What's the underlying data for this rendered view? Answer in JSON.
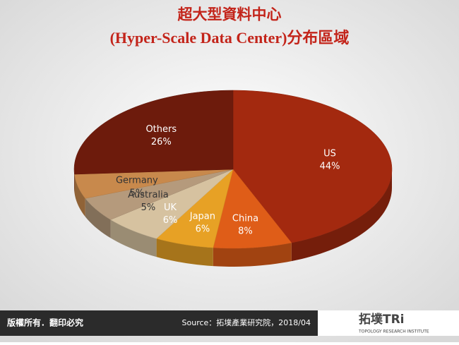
{
  "chart_data": {
    "type": "pie",
    "title": "超大型資料中心",
    "subtitle": "(Hyper-Scale Data Center)分布區域",
    "categories": [
      "US",
      "China",
      "Japan",
      "UK",
      "Australia",
      "Germany",
      "Others"
    ],
    "values": [
      44,
      8,
      6,
      6,
      5,
      5,
      26
    ],
    "value_labels": [
      "44%",
      "8%",
      "6%",
      "6%",
      "5%",
      "5%",
      "26%"
    ],
    "colors": [
      "#a3290f",
      "#df5d18",
      "#e7a125",
      "#d6c2a0",
      "#b59a7c",
      "#c8894c",
      "#6d1b0c"
    ],
    "label_colors": [
      "#ffffff",
      "#ffffff",
      "#ffffff",
      "#ffffff",
      "#333333",
      "#333333",
      "#ffffff"
    ]
  },
  "footer": {
    "rights": "版權所有．翻印必究",
    "source": "Source：拓墣產業研究院，2018/04",
    "logo": "拓墣TRi",
    "logo_sub": "TOPOLOGY RESEARCH INSTITUTE"
  }
}
